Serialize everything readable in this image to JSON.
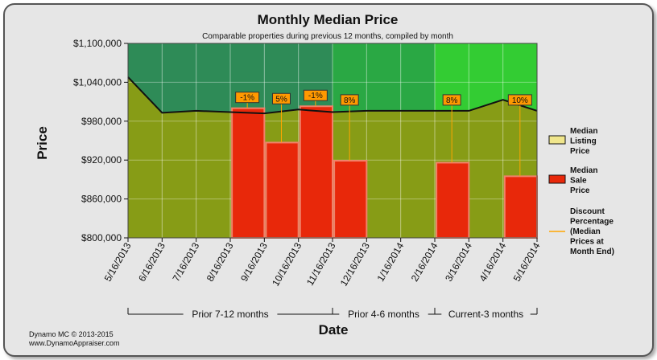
{
  "chart_data": {
    "type": "bar",
    "title": "Monthly Median Price",
    "subtitle": "Comparable properties during previous 12 months, compiled by month",
    "xlabel": "Date",
    "ylabel": "Price",
    "ylim": [
      800000,
      1100000
    ],
    "y_ticks": [
      "$800,000",
      "$860,000",
      "$920,000",
      "$980,000",
      "$1,040,000",
      "$1,100,000"
    ],
    "categories": [
      "5/16/2013",
      "6/16/2013",
      "7/16/2013",
      "8/16/2013",
      "9/16/2013",
      "10/16/2013",
      "11/16/2013",
      "12/16/2013",
      "1/16/2014",
      "2/16/2014",
      "3/16/2014",
      "4/16/2014",
      "5/16/2014"
    ],
    "series": [
      {
        "name": "Median Listing Price",
        "values": [
          1048000,
          993000,
          996000,
          994000,
          992000,
          998000,
          994000,
          996000,
          996000,
          996000,
          996000,
          1013000,
          996000
        ]
      },
      {
        "name": "Median Sale Price",
        "values": [
          null,
          null,
          null,
          null,
          1000000,
          947000,
          1003000,
          919000,
          null,
          null,
          916000,
          null,
          895000
        ]
      },
      {
        "name": "Discount Percentage (Median Prices at Month End)",
        "labels": [
          null,
          null,
          null,
          null,
          "-1%",
          "5%",
          "-1%",
          "8%",
          null,
          null,
          "8%",
          null,
          "10%"
        ]
      }
    ],
    "periods": [
      {
        "label": "Prior 7-12 months",
        "from": 0,
        "to": 6,
        "color": "#2e8b57"
      },
      {
        "label": "Prior 4-6 months",
        "from": 6,
        "to": 9,
        "color": "#2aa844"
      },
      {
        "label": "Current-3 months",
        "from": 9,
        "to": 12,
        "color": "#33cc33"
      }
    ],
    "colors": {
      "listing_fill": "#879c16",
      "sale_bar": "#e8280a",
      "sale_border": "#f0826a",
      "label_box": "#ff9900",
      "discount_line": "#ffa500",
      "legend_listing": "#f0e68c",
      "legend_sale": "#e8280a"
    }
  },
  "legend": [
    {
      "label": "Median\nListing\nPrice",
      "kind": "box",
      "color": "#f0e68c"
    },
    {
      "label": "Median\nSale\nPrice",
      "kind": "box",
      "color": "#e8280a"
    },
    {
      "label": "Discount\nPercentage\n(Median\nPrices at\nMonth End)",
      "kind": "line",
      "color": "#ffa500"
    }
  ],
  "footer": {
    "line1": "Dynamo MC   © 2013-2015",
    "line2": "www.DynamoAppraiser.com"
  }
}
